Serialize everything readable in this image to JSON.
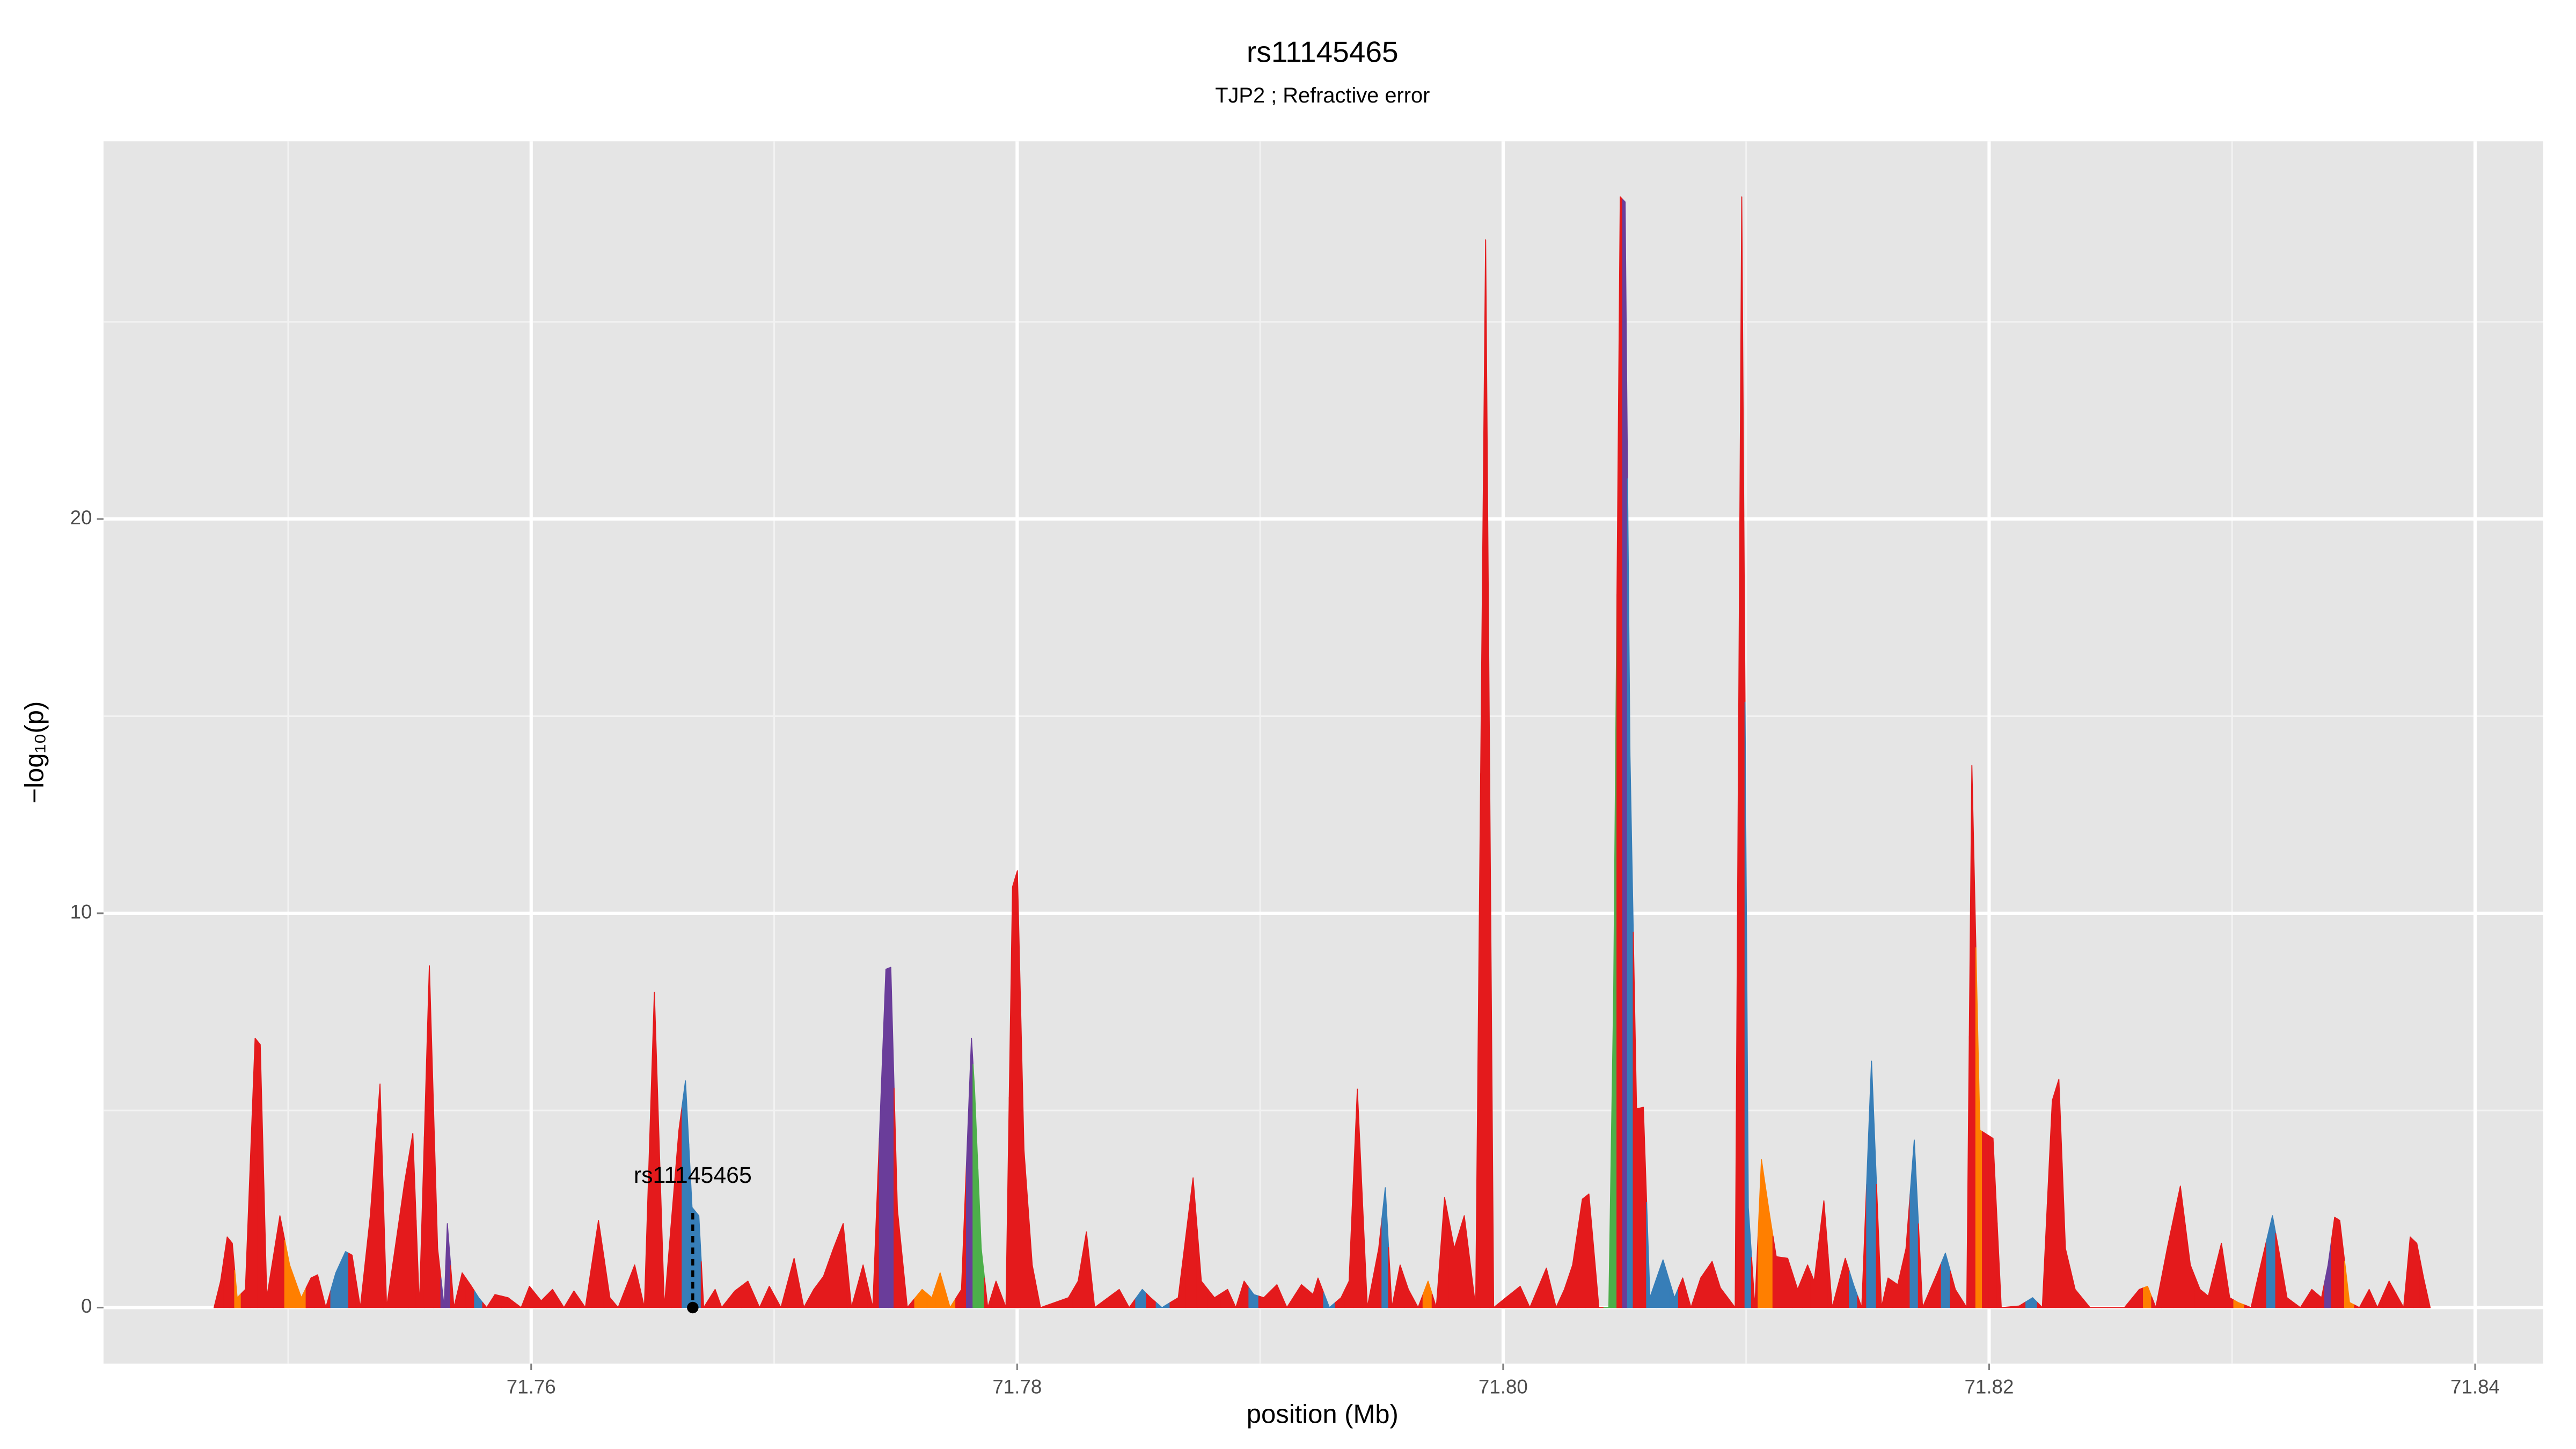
{
  "chart_data": {
    "type": "area",
    "title": "rs11145465",
    "subtitle": "TJP2 ; Refractive error",
    "xlabel": "position (Mb)",
    "ylabel": "−log₁₀(p)",
    "xlim": [
      71.7424,
      71.8428
    ],
    "ylim": [
      -1.42,
      29.58
    ],
    "xticks": [
      71.76,
      71.78,
      {
        "value": 71.8,
        "label": "71.80"
      },
      71.82,
      71.84
    ],
    "yticks": [
      0,
      10,
      20
    ],
    "grid": true,
    "minor_grid": true,
    "annotation": {
      "label": "rs11145465",
      "x": 71.76665,
      "y": 2.4
    },
    "x": [
      71.74695,
      71.74722,
      71.74749,
      71.7477,
      71.7479,
      71.74824,
      71.74864,
      71.74885,
      71.74912,
      71.74966,
      71.75006,
      71.75054,
      71.75094,
      71.75121,
      71.75155,
      71.75196,
      71.75236,
      71.75263,
      71.75297,
      71.75338,
      71.75378,
      71.75405,
      71.75479,
      71.75513,
      71.7554,
      71.75581,
      71.75615,
      71.75642,
      71.75655,
      71.75682,
      71.75716,
      71.7575,
      71.75784,
      71.75817,
      71.75851,
      71.75905,
      71.75959,
      71.75993,
      71.76041,
      71.76088,
      71.76135,
      71.76176,
      71.76223,
      71.76277,
      71.76324,
      71.76358,
      71.76426,
      71.76466,
      71.76507,
      71.76548,
      71.76608,
      71.76635,
      71.76662,
      71.7669,
      71.7671,
      71.76757,
      71.76784,
      71.76838,
      71.76892,
      71.7694,
      71.7698,
      71.77028,
      71.77082,
      71.77122,
      71.77163,
      71.77203,
      71.77244,
      71.77284,
      71.77318,
      71.77366,
      71.77406,
      71.7746,
      71.7748,
      71.77507,
      71.77548,
      71.77609,
      71.77649,
      71.77683,
      71.77724,
      71.77771,
      71.77812,
      71.77825,
      71.77852,
      71.77879,
      71.77913,
      71.77954,
      71.77981,
      71.78001,
      71.78028,
      71.78062,
      71.78096,
      71.78211,
      71.78251,
      71.78285,
      71.78319,
      71.7842,
      71.78461,
      71.78515,
      71.78549,
      71.78596,
      71.78663,
      71.78724,
      71.78758,
      71.78812,
      71.78866,
      71.789,
      71.78934,
      71.78974,
      71.79015,
      71.79069,
      71.7911,
      71.7917,
      71.79218,
      71.79238,
      71.79285,
      71.79333,
      71.79366,
      71.794,
      71.79441,
      71.79488,
      71.79515,
      71.79542,
      71.79576,
      71.7961,
      71.7965,
      71.79691,
      71.79725,
      71.79759,
      71.79799,
      71.7984,
      71.79887,
      71.79928,
      71.79961,
      71.8007,
      71.8011,
      71.80178,
      71.80218,
      71.80252,
      71.80286,
      71.80326,
      71.80353,
      71.80394,
      71.80435,
      71.80455,
      71.80482,
      71.80502,
      71.80522,
      71.80549,
      71.80577,
      71.80604,
      71.80658,
      71.80705,
      71.80739,
      71.80773,
      71.80813,
      71.8086,
      71.80894,
      71.80955,
      71.80982,
      71.81009,
      71.81036,
      71.81063,
      71.81097,
      71.81124,
      71.81171,
      71.81212,
      71.81253,
      71.8128,
      71.8132,
      71.81354,
      71.81408,
      71.81442,
      71.81476,
      71.81516,
      71.81557,
      71.81584,
      71.81624,
      71.81658,
      71.81692,
      71.81726,
      71.81787,
      71.8182,
      71.81861,
      71.81908,
      71.81929,
      71.81962,
      71.81983,
      71.82016,
      71.8205,
      71.82124,
      71.82179,
      71.82219,
      71.8226,
      71.82287,
      71.82314,
      71.82354,
      71.82415,
      71.82557,
      71.82618,
      71.82652,
      71.82686,
      71.82733,
      71.82787,
      71.82828,
      71.82868,
      71.82902,
      71.82956,
      71.8299,
      71.83024,
      71.83078,
      71.83118,
      71.83166,
      71.83193,
      71.83226,
      71.83281,
      71.83328,
      71.83368,
      71.83395,
      71.83422,
      71.83443,
      71.83483,
      71.83524,
      71.83564,
      71.83598,
      71.83646,
      71.83706,
      71.83733,
      71.8376,
      71.83788,
      71.83815
    ],
    "values": [
      0,
      0.67,
      1.79,
      1.63,
      0.25,
      0.46,
      6.83,
      6.67,
      0.25,
      2.33,
      1.08,
      0.25,
      0.75,
      0.83,
      0,
      0.88,
      1.42,
      1.33,
      0,
      2.33,
      5.67,
      0,
      3.17,
      4.42,
      0,
      8.67,
      1.5,
      0,
      2.13,
      0,
      0.88,
      0.58,
      0.25,
      0,
      0.33,
      0.25,
      0,
      0.54,
      0.17,
      0.46,
      0,
      0.42,
      0,
      2.21,
      0.25,
      0,
      1.08,
      0,
      8,
      0,
      4.5,
      5.75,
      2.54,
      2.33,
      0,
      0.46,
      0,
      0.42,
      0.67,
      0,
      0.54,
      0,
      1.25,
      0,
      0.46,
      0.79,
      1.5,
      2.13,
      0,
      1.08,
      0,
      8.58,
      8.63,
      2.5,
      0,
      0.46,
      0.25,
      0.88,
      0,
      0.46,
      6.83,
      5.5,
      1.5,
      0,
      0.67,
      0,
      10.67,
      11.08,
      4,
      1.08,
      0,
      0.25,
      0.67,
      1.92,
      0,
      0.46,
      0,
      0.46,
      0.25,
      0,
      0.25,
      3.29,
      0.67,
      0.25,
      0.46,
      0,
      0.67,
      0.33,
      0.25,
      0.58,
      0,
      0.58,
      0.33,
      0.75,
      0,
      0.25,
      0.67,
      5.54,
      0,
      1.5,
      3.04,
      0,
      1.08,
      0.46,
      0,
      0.67,
      0,
      2.79,
      1.5,
      2.33,
      0,
      27.08,
      0,
      0.54,
      0,
      1,
      0,
      0.46,
      1.08,
      2.75,
      2.88,
      0,
      0,
      8,
      28.17,
      28.04,
      14,
      5.04,
      5.08,
      0.25,
      1.21,
      0.25,
      0.75,
      0,
      0.75,
      1.17,
      0.5,
      0,
      28.17,
      2.54,
      0,
      3.75,
      2.33,
      1.29,
      1.25,
      0.46,
      1.08,
      0.67,
      2.71,
      0,
      1.25,
      0.58,
      0,
      6.25,
      0,
      0.75,
      0.58,
      1.5,
      4.25,
      0,
      0.88,
      1.38,
      0.46,
      0,
      13.75,
      4.5,
      4.42,
      4.29,
      0,
      0.04,
      0.25,
      0,
      5.25,
      5.79,
      1.5,
      0.46,
      0,
      0,
      0.46,
      0.54,
      0,
      1.5,
      3.08,
      1.08,
      0.46,
      0.29,
      1.63,
      0.25,
      0.13,
      0,
      1.08,
      2.33,
      1.42,
      0.25,
      0,
      0.46,
      0.25,
      1.08,
      2.29,
      2.21,
      0.13,
      0,
      0.46,
      0,
      0.67,
      0,
      1.79,
      1.63,
      0.75,
      0
    ],
    "colors": [
      "#e41a1c",
      "#e41a1c",
      "#e41a1c",
      "#e41a1c",
      "#ff7f00",
      "#e41a1c",
      "#e41a1c",
      "#e41a1c",
      "#e41a1c",
      "#e41a1c",
      "#ff7f00",
      "#ff7f00",
      "#e41a1c",
      "#e41a1c",
      "#e41a1c",
      "#377eb8",
      "#377eb8",
      "#e41a1c",
      "#e41a1c",
      "#e41a1c",
      "#e41a1c",
      "#e41a1c",
      "#e41a1c",
      "#e41a1c",
      "#e41a1c",
      "#e41a1c",
      "#e41a1c",
      "#6a3d9a",
      "#6a3d9a",
      "#e41a1c",
      "#e41a1c",
      "#e41a1c",
      "#377eb8",
      "#e41a1c",
      "#e41a1c",
      "#e41a1c",
      "#e41a1c",
      "#e41a1c",
      "#e41a1c",
      "#e41a1c",
      "#e41a1c",
      "#e41a1c",
      "#e41a1c",
      "#e41a1c",
      "#e41a1c",
      "#e41a1c",
      "#e41a1c",
      "#e41a1c",
      "#e41a1c",
      "#e41a1c",
      "#e41a1c",
      "#377eb8",
      "#377eb8",
      "#377eb8",
      "#e41a1c",
      "#e41a1c",
      "#e41a1c",
      "#e41a1c",
      "#e41a1c",
      "#e41a1c",
      "#e41a1c",
      "#e41a1c",
      "#e41a1c",
      "#e41a1c",
      "#e41a1c",
      "#e41a1c",
      "#e41a1c",
      "#e41a1c",
      "#e41a1c",
      "#e41a1c",
      "#e41a1c",
      "#6a3d9a",
      "#6a3d9a",
      "#e41a1c",
      "#e41a1c",
      "#ff7f00",
      "#ff7f00",
      "#ff7f00",
      "#ff7f00",
      "#e41a1c",
      "#6a3d9a",
      "#4daf4a",
      "#4daf4a",
      "#e41a1c",
      "#e41a1c",
      "#e41a1c",
      "#e41a1c",
      "#e41a1c",
      "#e41a1c",
      "#e41a1c",
      "#e41a1c",
      "#e41a1c",
      "#e41a1c",
      "#e41a1c",
      "#e41a1c",
      "#e41a1c",
      "#e41a1c",
      "#377eb8",
      "#e41a1c",
      "#377eb8",
      "#e41a1c",
      "#e41a1c",
      "#e41a1c",
      "#e41a1c",
      "#e41a1c",
      "#e41a1c",
      "#e41a1c",
      "#377eb8",
      "#e41a1c",
      "#e41a1c",
      "#e41a1c",
      "#e41a1c",
      "#e41a1c",
      "#e41a1c",
      "#377eb8",
      "#e41a1c",
      "#e41a1c",
      "#e41a1c",
      "#e41a1c",
      "#e41a1c",
      "#377eb8",
      "#e41a1c",
      "#e41a1c",
      "#e41a1c",
      "#e41a1c",
      "#ff7f00",
      "#e41a1c",
      "#e41a1c",
      "#e41a1c",
      "#e41a1c",
      "#e41a1c",
      "#e41a1c",
      "#e41a1c",
      "#e41a1c",
      "#e41a1c",
      "#e41a1c",
      "#e41a1c",
      "#e41a1c",
      "#e41a1c",
      "#e41a1c",
      "#e41a1c",
      "#e41a1c",
      "#4daf4a",
      "#4daf4a",
      "#e41a1c",
      "#6a3d9a",
      "#377eb8",
      "#e41a1c",
      "#e41a1c",
      "#377eb8",
      "#377eb8",
      "#377eb8",
      "#e41a1c",
      "#e41a1c",
      "#e41a1c",
      "#e41a1c",
      "#e41a1c",
      "#e41a1c",
      "#e41a1c",
      "#377eb8",
      "#e41a1c",
      "#ff7f00",
      "#ff7f00",
      "#e41a1c",
      "#e41a1c",
      "#e41a1c",
      "#e41a1c",
      "#e41a1c",
      "#e41a1c",
      "#e41a1c",
      "#e41a1c",
      "#377eb8",
      "#e41a1c",
      "#377eb8",
      "#e41a1c",
      "#e41a1c",
      "#e41a1c",
      "#e41a1c",
      "#377eb8",
      "#e41a1c",
      "#e41a1c",
      "#377eb8",
      "#e41a1c",
      "#e41a1c",
      "#e41a1c",
      "#ff7f00",
      "#e41a1c",
      "#e41a1c",
      "#e41a1c",
      "#e41a1c",
      "#377eb8",
      "#e41a1c",
      "#e41a1c",
      "#e41a1c",
      "#e41a1c",
      "#e41a1c",
      "#e41a1c",
      "#e41a1c",
      "#e41a1c",
      "#ff7f00",
      "#e41a1c",
      "#e41a1c",
      "#e41a1c",
      "#e41a1c",
      "#e41a1c",
      "#e41a1c",
      "#e41a1c",
      "#e41a1c",
      "#ff7f00",
      "#e41a1c",
      "#e41a1c",
      "#377eb8",
      "#e41a1c",
      "#e41a1c",
      "#e41a1c",
      "#e41a1c",
      "#e41a1c",
      "#6a3d9a",
      "#e41a1c",
      "#e41a1c",
      "#ff7f00",
      "#e41a1c",
      "#e41a1c",
      "#e41a1c",
      "#e41a1c",
      "#e41a1c",
      "#e41a1c",
      "#e41a1c",
      "#e41a1c",
      "#e41a1c"
    ]
  }
}
